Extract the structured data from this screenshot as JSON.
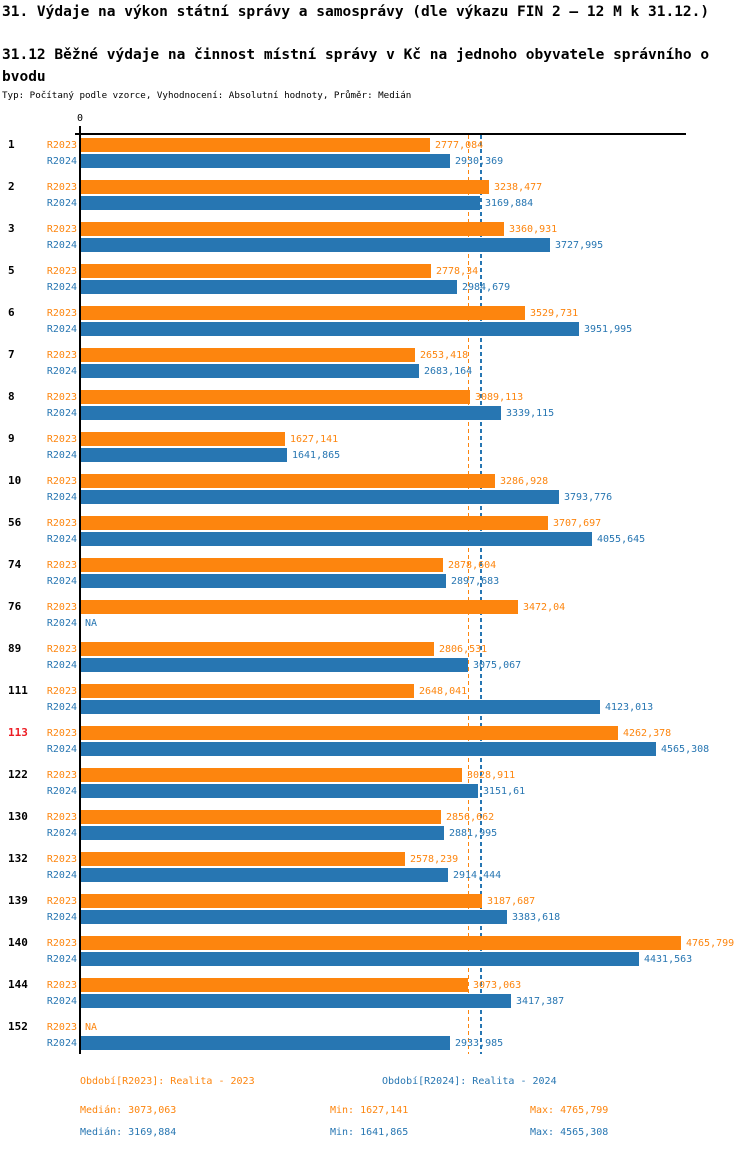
{
  "colors": {
    "r2023": "#fd850e",
    "r2024": "#2776b2",
    "highlight_row": "#ed1c24",
    "axis": "#000000"
  },
  "chart_data": {
    "type": "bar",
    "orientation": "horizontal",
    "title": "31. Výdaje na výkon státní správy a samosprávy (dle výkazu FIN 2 – 12 M k 31.12.)",
    "subtitle": "31.12 Běžné výdaje na činnost místní správy v Kč na jednoho obyvatele správního obvodu",
    "meta_line": "Typ: Počítaný podle vzorce, Vyhodnocení: Absolutní hodnoty, Průměr: Medián",
    "series_names": [
      "R2023",
      "R2024"
    ],
    "x_axis": {
      "zero_label": "0",
      "xlim": [
        0,
        4850
      ],
      "grid": false
    },
    "legend_position": "bottom",
    "rows": [
      {
        "id": "1",
        "highlight": false,
        "r2023_value": 2777.084,
        "r2023_label": "2777,084",
        "r2024_value": 2930.369,
        "r2024_label": "2930,369"
      },
      {
        "id": "2",
        "highlight": false,
        "r2023_value": 3238.477,
        "r2023_label": "3238,477",
        "r2024_value": 3169.884,
        "r2024_label": "3169,884"
      },
      {
        "id": "3",
        "highlight": false,
        "r2023_value": 3360.931,
        "r2023_label": "3360,931",
        "r2024_value": 3727.995,
        "r2024_label": "3727,995"
      },
      {
        "id": "5",
        "highlight": false,
        "r2023_value": 2778.34,
        "r2023_label": "2778,34",
        "r2024_value": 2984.679,
        "r2024_label": "2984,679"
      },
      {
        "id": "6",
        "highlight": false,
        "r2023_value": 3529.731,
        "r2023_label": "3529,731",
        "r2024_value": 3951.995,
        "r2024_label": "3951,995"
      },
      {
        "id": "7",
        "highlight": false,
        "r2023_value": 2653.418,
        "r2023_label": "2653,418",
        "r2024_value": 2683.164,
        "r2024_label": "2683,164"
      },
      {
        "id": "8",
        "highlight": false,
        "r2023_value": 3089.113,
        "r2023_label": "3089,113",
        "r2024_value": 3339.115,
        "r2024_label": "3339,115"
      },
      {
        "id": "9",
        "highlight": false,
        "r2023_value": 1627.141,
        "r2023_label": "1627,141",
        "r2024_value": 1641.865,
        "r2024_label": "1641,865"
      },
      {
        "id": "10",
        "highlight": false,
        "r2023_value": 3286.928,
        "r2023_label": "3286,928",
        "r2024_value": 3793.776,
        "r2024_label": "3793,776"
      },
      {
        "id": "56",
        "highlight": false,
        "r2023_value": 3707.697,
        "r2023_label": "3707,697",
        "r2024_value": 4055.645,
        "r2024_label": "4055,645"
      },
      {
        "id": "74",
        "highlight": false,
        "r2023_value": 2878.604,
        "r2023_label": "2878,604",
        "r2024_value": 2897.683,
        "r2024_label": "2897,683"
      },
      {
        "id": "76",
        "highlight": false,
        "r2023_value": 3472.04,
        "r2023_label": "3472,04",
        "r2024_value": null,
        "r2024_label": "NA"
      },
      {
        "id": "89",
        "highlight": false,
        "r2023_value": 2806.531,
        "r2023_label": "2806,531",
        "r2024_value": 3075.067,
        "r2024_label": "3075,067"
      },
      {
        "id": "111",
        "highlight": false,
        "r2023_value": 2648.041,
        "r2023_label": "2648,041",
        "r2024_value": 4123.013,
        "r2024_label": "4123,013"
      },
      {
        "id": "113",
        "highlight": true,
        "r2023_value": 4262.378,
        "r2023_label": "4262,378",
        "r2024_value": 4565.308,
        "r2024_label": "4565,308"
      },
      {
        "id": "122",
        "highlight": false,
        "r2023_value": 3028.911,
        "r2023_label": "3028,911",
        "r2024_value": 3151.61,
        "r2024_label": "3151,61"
      },
      {
        "id": "130",
        "highlight": false,
        "r2023_value": 2856.662,
        "r2023_label": "2856,662",
        "r2024_value": 2881.995,
        "r2024_label": "2881,995"
      },
      {
        "id": "132",
        "highlight": false,
        "r2023_value": 2578.239,
        "r2023_label": "2578,239",
        "r2024_value": 2914.444,
        "r2024_label": "2914,444"
      },
      {
        "id": "139",
        "highlight": false,
        "r2023_value": 3187.687,
        "r2023_label": "3187,687",
        "r2024_value": 3383.618,
        "r2024_label": "3383,618"
      },
      {
        "id": "140",
        "highlight": false,
        "r2023_value": 4765.799,
        "r2023_label": "4765,799",
        "r2024_value": 4431.563,
        "r2024_label": "4431,563"
      },
      {
        "id": "144",
        "highlight": false,
        "r2023_value": 3073.063,
        "r2023_label": "3073,063",
        "r2024_value": 3417.387,
        "r2024_label": "3417,387"
      },
      {
        "id": "152",
        "highlight": false,
        "r2023_value": null,
        "r2023_label": "NA",
        "r2024_value": 2933.985,
        "r2024_label": "2933,985"
      }
    ],
    "medians": {
      "r2023": 3073.063,
      "r2024": 3169.884
    },
    "stats_numeric": {
      "r2023": {
        "median": 3073.063,
        "min": 1627.141,
        "max": 4765.799
      },
      "r2024": {
        "median": 3169.884,
        "min": 1641.865,
        "max": 4565.308
      }
    }
  },
  "footer": {
    "legend_r2023": "Období[R2023]: Realita - 2023",
    "legend_r2024": "Období[R2024]: Realita - 2024",
    "median_r2023": "Medián: 3073,063",
    "min_r2023": "Min: 1627,141",
    "max_r2023": "Max: 4765,799",
    "median_r2024": "Medián: 3169,884",
    "min_r2024": "Min: 1641,865",
    "max_r2024": "Max: 4565,308"
  }
}
